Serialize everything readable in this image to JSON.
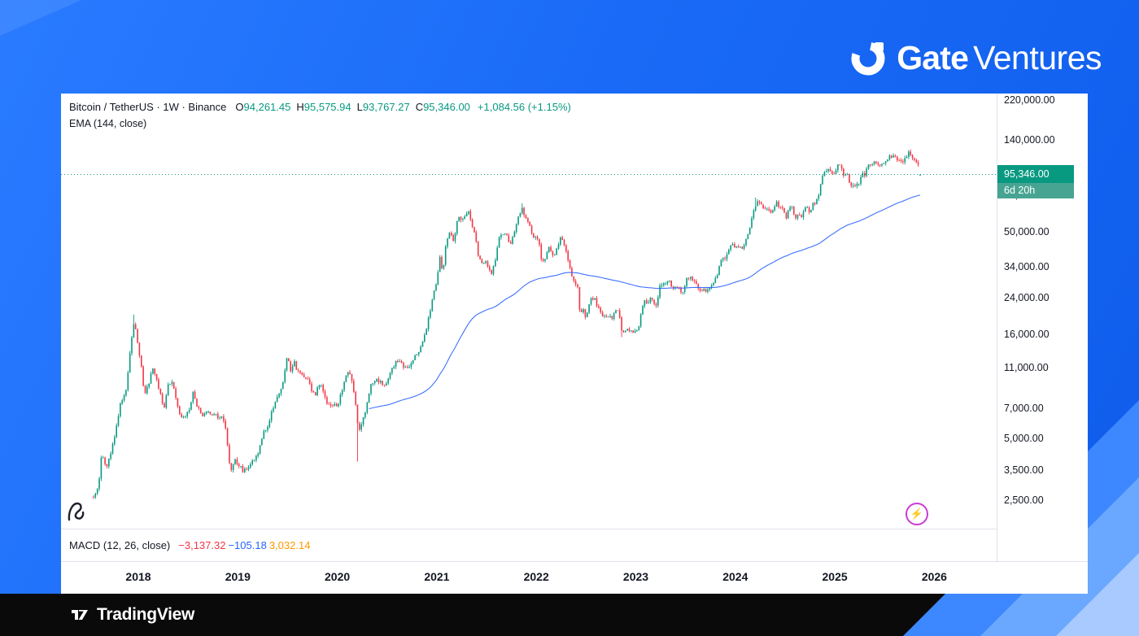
{
  "branding": {
    "logo_bold": "Gate",
    "logo_light": "Ventures"
  },
  "chart": {
    "header": {
      "symbol_line": "Bitcoin / TetherUS · 1W · Binance",
      "ohlc": {
        "o_label": "O",
        "o": "94,261.45",
        "h_label": "H",
        "h": "95,575.94",
        "l_label": "L",
        "l": "93,767.27",
        "c_label": "C",
        "c": "95,346.00",
        "change": "+1,084.56 (+1.15%)"
      },
      "indicator_line": "EMA (144, close)"
    },
    "price_scale": {
      "current_price_label": "95,346.00",
      "countdown": "6d 20h"
    },
    "macd": {
      "label": "MACD (12, 26, close)",
      "values": [
        {
          "text": "−3,137.32",
          "color": "#f23645"
        },
        {
          "text": "−105.18",
          "color": "#2962ff"
        },
        {
          "text": "3,032.14",
          "color": "#ff9800"
        }
      ]
    },
    "icons": {
      "flash_glyph": "⚡"
    }
  },
  "footer": {
    "logo_text": "TradingView"
  },
  "colors": {
    "background_blue": "#1a6af7",
    "up": "#089981",
    "down": "#f23645",
    "ema_line": "#2962ff",
    "badge_green": "#089981",
    "countdown_green": "#47a492",
    "axis_border": "#e0e3eb",
    "text_dark": "#131722"
  },
  "chart_data": {
    "type": "candlestick",
    "title": "Bitcoin / TetherUS · 1W · Binance",
    "scale": "log",
    "grid": "off",
    "legend_position": "top-left",
    "x_ticks": [
      2018,
      2019,
      2020,
      2021,
      2022,
      2023,
      2024,
      2025,
      2026
    ],
    "x_range_data": [
      2017.55,
      2025.875
    ],
    "y_axis": [
      {
        "value": 220000,
        "label": "220,000.00"
      },
      {
        "value": 140000,
        "label": "140,000.00"
      },
      {
        "value": 75721.53,
        "label": "75,721.53"
      },
      {
        "value": 50000,
        "label": "50,000.00"
      },
      {
        "value": 34000,
        "label": "34,000.00"
      },
      {
        "value": 24000,
        "label": "24,000.00"
      },
      {
        "value": 16000,
        "label": "16,000.00"
      },
      {
        "value": 11000,
        "label": "11,000.00"
      },
      {
        "value": 7000,
        "label": "7,000.00"
      },
      {
        "value": 5000,
        "label": "5,000.00"
      },
      {
        "value": 3500,
        "label": "3,500.00"
      },
      {
        "value": 2500,
        "label": "2,500.00"
      }
    ],
    "current": {
      "price": 95346.0,
      "open": 94261.45,
      "high": 95575.94,
      "low": 93767.27,
      "change": "+1,084.56 (+1.15%)",
      "countdown": "6d 20h"
    },
    "ema": {
      "period": 144,
      "source": "close",
      "last_value": 75721.53,
      "color": "#2962ff"
    },
    "macd": {
      "fast": 12,
      "slow": 26,
      "source": "close",
      "histogram": -3137.32,
      "macd_line": -105.18,
      "signal": 3032.14
    },
    "up_color": "#089981",
    "down_color": "#f23645",
    "wick_overrides": {
      "highs": [
        [
          2017.96,
          19891
        ],
        [
          2021.86,
          69000
        ],
        [
          2024.21,
          73777
        ],
        [
          2025.76,
          126199
        ]
      ],
      "lows": [
        [
          2020.204,
          3850
        ],
        [
          2022.865,
          15476
        ]
      ]
    },
    "anchors_weekly_close": [
      [
        2017.55,
        2600
      ],
      [
        2017.6,
        2900
      ],
      [
        2017.63,
        4100
      ],
      [
        2017.68,
        3600
      ],
      [
        2017.73,
        4400
      ],
      [
        2017.78,
        5700
      ],
      [
        2017.82,
        7400
      ],
      [
        2017.87,
        8200
      ],
      [
        2017.9,
        11000
      ],
      [
        2017.94,
        16500
      ],
      [
        2017.96,
        18900
      ],
      [
        2018.0,
        13500
      ],
      [
        2018.03,
        11200
      ],
      [
        2018.06,
        8300
      ],
      [
        2018.1,
        8900
      ],
      [
        2018.14,
        11100
      ],
      [
        2018.18,
        9900
      ],
      [
        2018.22,
        8200
      ],
      [
        2018.26,
        7000
      ],
      [
        2018.3,
        8900
      ],
      [
        2018.34,
        9600
      ],
      [
        2018.38,
        7500
      ],
      [
        2018.42,
        6500
      ],
      [
        2018.46,
        6200
      ],
      [
        2018.5,
        6700
      ],
      [
        2018.55,
        8200
      ],
      [
        2018.6,
        7000
      ],
      [
        2018.65,
        6500
      ],
      [
        2018.7,
        6700
      ],
      [
        2018.75,
        6500
      ],
      [
        2018.8,
        6400
      ],
      [
        2018.85,
        6400
      ],
      [
        2018.88,
        5600
      ],
      [
        2018.9,
        4300
      ],
      [
        2018.93,
        3400
      ],
      [
        2018.96,
        3900
      ],
      [
        2019.0,
        3800
      ],
      [
        2019.05,
        3500
      ],
      [
        2019.1,
        3600
      ],
      [
        2019.15,
        3900
      ],
      [
        2019.2,
        4100
      ],
      [
        2019.25,
        5200
      ],
      [
        2019.3,
        5600
      ],
      [
        2019.35,
        7000
      ],
      [
        2019.4,
        8000
      ],
      [
        2019.44,
        8800
      ],
      [
        2019.48,
        10800
      ],
      [
        2019.5,
        12900
      ],
      [
        2019.53,
        10800
      ],
      [
        2019.57,
        11800
      ],
      [
        2019.6,
        10500
      ],
      [
        2019.65,
        10100
      ],
      [
        2019.7,
        9600
      ],
      [
        2019.75,
        8300
      ],
      [
        2019.78,
        8200
      ],
      [
        2019.82,
        9200
      ],
      [
        2019.85,
        8700
      ],
      [
        2019.9,
        7300
      ],
      [
        2019.95,
        7200
      ],
      [
        2020.0,
        7200
      ],
      [
        2020.04,
        8300
      ],
      [
        2020.08,
        9900
      ],
      [
        2020.12,
        10300
      ],
      [
        2020.16,
        8900
      ],
      [
        2020.2,
        6200
      ],
      [
        2020.22,
        5300
      ],
      [
        2020.25,
        6200
      ],
      [
        2020.29,
        6900
      ],
      [
        2020.33,
        8900
      ],
      [
        2020.37,
        9700
      ],
      [
        2020.42,
        9400
      ],
      [
        2020.46,
        9100
      ],
      [
        2020.5,
        9200
      ],
      [
        2020.55,
        11100
      ],
      [
        2020.6,
        11700
      ],
      [
        2020.65,
        11500
      ],
      [
        2020.7,
        10700
      ],
      [
        2020.75,
        11400
      ],
      [
        2020.8,
        13000
      ],
      [
        2020.84,
        13800
      ],
      [
        2020.88,
        16100
      ],
      [
        2020.92,
        19200
      ],
      [
        2020.96,
        24200
      ],
      [
        2021.0,
        29000
      ],
      [
        2021.03,
        38000
      ],
      [
        2021.06,
        32000
      ],
      [
        2021.1,
        47000
      ],
      [
        2021.13,
        48700
      ],
      [
        2021.17,
        45100
      ],
      [
        2021.21,
        57400
      ],
      [
        2021.25,
        58800
      ],
      [
        2021.29,
        59000
      ],
      [
        2021.32,
        63500
      ],
      [
        2021.35,
        56200
      ],
      [
        2021.38,
        49000
      ],
      [
        2021.42,
        37300
      ],
      [
        2021.46,
        34700
      ],
      [
        2021.5,
        35600
      ],
      [
        2021.53,
        32200
      ],
      [
        2021.56,
        31800
      ],
      [
        2021.6,
        39800
      ],
      [
        2021.63,
        47100
      ],
      [
        2021.67,
        48800
      ],
      [
        2021.7,
        48300
      ],
      [
        2021.73,
        42800
      ],
      [
        2021.77,
        47700
      ],
      [
        2021.8,
        54700
      ],
      [
        2021.83,
        61300
      ],
      [
        2021.86,
        65500
      ],
      [
        2021.88,
        58000
      ],
      [
        2021.92,
        57300
      ],
      [
        2021.95,
        50100
      ],
      [
        2021.98,
        46300
      ],
      [
        2022.0,
        47700
      ],
      [
        2022.03,
        43100
      ],
      [
        2022.06,
        35000
      ],
      [
        2022.09,
        37900
      ],
      [
        2022.12,
        42400
      ],
      [
        2022.15,
        39400
      ],
      [
        2022.18,
        38300
      ],
      [
        2022.21,
        41300
      ],
      [
        2022.24,
        46300
      ],
      [
        2022.27,
        46500
      ],
      [
        2022.3,
        39700
      ],
      [
        2022.33,
        36000
      ],
      [
        2022.36,
        30300
      ],
      [
        2022.39,
        29000
      ],
      [
        2022.42,
        26700
      ],
      [
        2022.44,
        19000
      ],
      [
        2022.47,
        21200
      ],
      [
        2022.5,
        19300
      ],
      [
        2022.53,
        22500
      ],
      [
        2022.56,
        24400
      ],
      [
        2022.59,
        23300
      ],
      [
        2022.62,
        21500
      ],
      [
        2022.65,
        20000
      ],
      [
        2022.68,
        19800
      ],
      [
        2022.71,
        18900
      ],
      [
        2022.74,
        19600
      ],
      [
        2022.77,
        19400
      ],
      [
        2022.8,
        20800
      ],
      [
        2022.83,
        20600
      ],
      [
        2022.86,
        16300
      ],
      [
        2022.89,
        16500
      ],
      [
        2022.92,
        17100
      ],
      [
        2022.95,
        16800
      ],
      [
        2022.98,
        16500
      ],
      [
        2023.0,
        16600
      ],
      [
        2023.03,
        17000
      ],
      [
        2023.06,
        21100
      ],
      [
        2023.09,
        23000
      ],
      [
        2023.12,
        21800
      ],
      [
        2023.15,
        24600
      ],
      [
        2023.18,
        22400
      ],
      [
        2023.21,
        22200
      ],
      [
        2023.24,
        27500
      ],
      [
        2023.27,
        28500
      ],
      [
        2023.3,
        28000
      ],
      [
        2023.33,
        29300
      ],
      [
        2023.36,
        27600
      ],
      [
        2023.39,
        26900
      ],
      [
        2023.42,
        27100
      ],
      [
        2023.45,
        25900
      ],
      [
        2023.48,
        26300
      ],
      [
        2023.51,
        30500
      ],
      [
        2023.54,
        30300
      ],
      [
        2023.57,
        29800
      ],
      [
        2023.6,
        29200
      ],
      [
        2023.63,
        26000
      ],
      [
        2023.66,
        26100
      ],
      [
        2023.69,
        25900
      ],
      [
        2023.72,
        26600
      ],
      [
        2023.75,
        27000
      ],
      [
        2023.78,
        28500
      ],
      [
        2023.81,
        30000
      ],
      [
        2023.84,
        34500
      ],
      [
        2023.87,
        37100
      ],
      [
        2023.9,
        37700
      ],
      [
        2023.93,
        41200
      ],
      [
        2023.96,
        43700
      ],
      [
        2024.0,
        42300
      ],
      [
        2024.03,
        42600
      ],
      [
        2024.06,
        42000
      ],
      [
        2024.09,
        43000
      ],
      [
        2024.12,
        48300
      ],
      [
        2024.15,
        52100
      ],
      [
        2024.18,
        62500
      ],
      [
        2024.21,
        68500
      ],
      [
        2024.24,
        69600
      ],
      [
        2024.27,
        67200
      ],
      [
        2024.3,
        63900
      ],
      [
        2024.33,
        64000
      ],
      [
        2024.36,
        60800
      ],
      [
        2024.39,
        66300
      ],
      [
        2024.42,
        69300
      ],
      [
        2024.45,
        66200
      ],
      [
        2024.48,
        64300
      ],
      [
        2024.51,
        58200
      ],
      [
        2024.54,
        68000
      ],
      [
        2024.57,
        67100
      ],
      [
        2024.6,
        58700
      ],
      [
        2024.63,
        59500
      ],
      [
        2024.66,
        59100
      ],
      [
        2024.69,
        63600
      ],
      [
        2024.72,
        65900
      ],
      [
        2024.75,
        62800
      ],
      [
        2024.78,
        68000
      ],
      [
        2024.81,
        69400
      ],
      [
        2024.84,
        76700
      ],
      [
        2024.87,
        90600
      ],
      [
        2024.9,
        97700
      ],
      [
        2024.93,
        101400
      ],
      [
        2024.96,
        95200
      ],
      [
        2025.0,
        94300
      ],
      [
        2025.03,
        104500
      ],
      [
        2025.06,
        102600
      ],
      [
        2025.09,
        96100
      ],
      [
        2025.12,
        96600
      ],
      [
        2025.15,
        84400
      ],
      [
        2025.18,
        86100
      ],
      [
        2025.21,
        83800
      ],
      [
        2025.24,
        85200
      ],
      [
        2025.27,
        94600
      ],
      [
        2025.3,
        94000
      ],
      [
        2025.33,
        103800
      ],
      [
        2025.36,
        104700
      ],
      [
        2025.39,
        109600
      ],
      [
        2025.42,
        105600
      ],
      [
        2025.45,
        103200
      ],
      [
        2025.48,
        108200
      ],
      [
        2025.51,
        109200
      ],
      [
        2025.54,
        117500
      ],
      [
        2025.57,
        118000
      ],
      [
        2025.6,
        114800
      ],
      [
        2025.63,
        113500
      ],
      [
        2025.66,
        108300
      ],
      [
        2025.69,
        112800
      ],
      [
        2025.72,
        115800
      ],
      [
        2025.75,
        122400
      ],
      [
        2025.78,
        114300
      ],
      [
        2025.81,
        110100
      ],
      [
        2025.84,
        103500
      ],
      [
        2025.875,
        95346
      ]
    ]
  }
}
